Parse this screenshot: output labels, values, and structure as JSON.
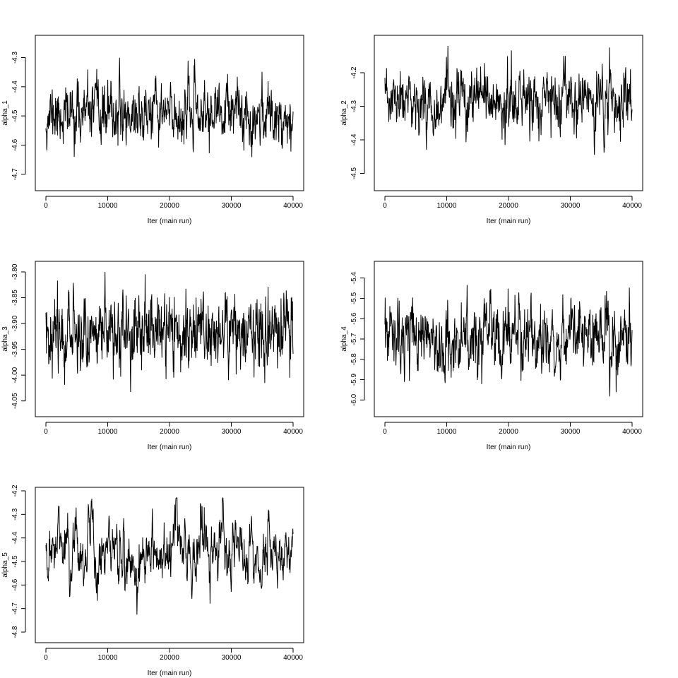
{
  "chart_data": [
    {
      "type": "line",
      "ylabel": "alpha_1",
      "xlabel": "Iter (main run)",
      "xlim": [
        0,
        40000
      ],
      "ylim": [
        -4.72,
        -4.26
      ],
      "xticks": [
        0,
        10000,
        20000,
        30000,
        40000
      ],
      "yticks": [
        -4.7,
        -4.6,
        -4.5,
        -4.4,
        -4.3
      ],
      "series": [
        {
          "mean": -4.495,
          "sd": 0.05,
          "rho": 0.55,
          "seed": 11,
          "x": [
            0,
            40000
          ]
        }
      ]
    },
    {
      "type": "line",
      "ylabel": "alpha_2",
      "xlabel": "Iter (main run)",
      "xlim": [
        0,
        40000
      ],
      "ylim": [
        -4.52,
        -4.12
      ],
      "xticks": [
        0,
        10000,
        20000,
        30000,
        40000
      ],
      "yticks": [
        -4.5,
        -4.4,
        -4.3,
        -4.2
      ],
      "series": [
        {
          "mean": -4.29,
          "sd": 0.045,
          "rho": 0.55,
          "seed": 23,
          "x": [
            0,
            40000
          ]
        }
      ]
    },
    {
      "type": "line",
      "ylabel": "alpha_3",
      "xlabel": "Iter (main run)",
      "xlim": [
        0,
        40000
      ],
      "ylim": [
        -4.06,
        -3.8
      ],
      "xticks": [
        0,
        10000,
        20000,
        30000,
        40000
      ],
      "yticks": [
        -4.05,
        -4.0,
        -3.95,
        -3.9,
        -3.85,
        -3.8
      ],
      "series": [
        {
          "mean": -3.915,
          "sd": 0.035,
          "rho": 0.45,
          "seed": 37,
          "x": [
            0,
            40000
          ]
        }
      ]
    },
    {
      "type": "line",
      "ylabel": "alpha_4",
      "xlabel": "Iter (main run)",
      "xlim": [
        0,
        40000
      ],
      "ylim": [
        -6.03,
        -5.37
      ],
      "xticks": [
        0,
        10000,
        20000,
        30000,
        40000
      ],
      "yticks": [
        -6.0,
        -5.9,
        -5.8,
        -5.7,
        -5.6,
        -5.5,
        -5.4
      ],
      "series": [
        {
          "mean": -5.7,
          "sd": 0.085,
          "rho": 0.55,
          "seed": 53,
          "x": [
            0,
            40000
          ]
        }
      ]
    },
    {
      "type": "line",
      "ylabel": "alpha_5",
      "xlabel": "Iter (main run)",
      "xlim": [
        0,
        40000
      ],
      "ylim": [
        -4.8,
        -4.23
      ],
      "xticks": [
        0,
        10000,
        20000,
        30000,
        40000
      ],
      "yticks": [
        -4.8,
        -4.7,
        -4.6,
        -4.5,
        -4.4,
        -4.3,
        -4.2
      ],
      "series": [
        {
          "mean": -4.45,
          "sd": 0.085,
          "rho": 0.8,
          "seed": 71,
          "x": [
            0,
            40000
          ]
        }
      ]
    }
  ]
}
